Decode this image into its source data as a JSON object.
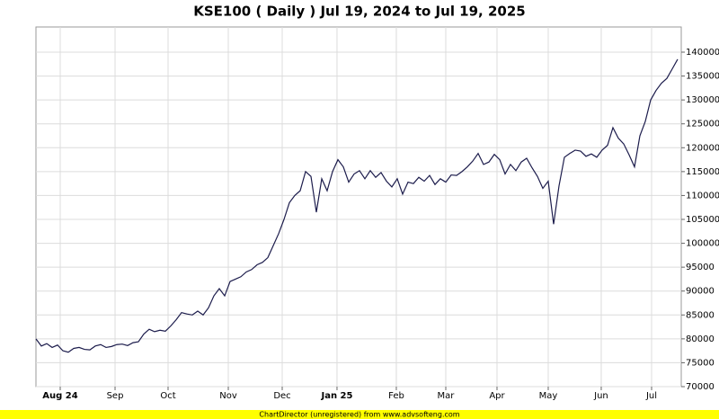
{
  "chart_data": {
    "type": "line",
    "title": "KSE100 ( Daily ) Jul 19, 2024 to Jul 19, 2025",
    "footer": "ChartDirector (unregistered) from www.advsofteng.com",
    "series": [
      {
        "color": "#1c1c4c",
        "values": [
          80000,
          78500,
          79000,
          78200,
          78700,
          77500,
          77200,
          78000,
          78200,
          77800,
          77700,
          78500,
          78800,
          78200,
          78400,
          78800,
          78900,
          78600,
          79200,
          79400,
          81000,
          82000,
          81500,
          81800,
          81600,
          82700,
          84000,
          85500,
          85200,
          85000,
          85800,
          85000,
          86500,
          89000,
          90500,
          89000,
          92000,
          92500,
          93000,
          94000,
          94500,
          95500,
          96000,
          97000,
          99500,
          102000,
          105000,
          108500,
          110000,
          111000,
          115000,
          114000,
          106500,
          113500,
          111000,
          115000,
          117500,
          116000,
          112800,
          114500,
          115200,
          113500,
          115200,
          113800,
          114800,
          113000,
          111800,
          113500,
          110300,
          112800,
          112500,
          113800,
          113000,
          114200,
          112300,
          113500,
          112800,
          114300,
          114200,
          115000,
          116000,
          117200,
          118800,
          116500,
          117000,
          118600,
          117500,
          114500,
          116500,
          115200,
          117000,
          117800,
          115800,
          114000,
          111500,
          113000,
          104000,
          112000,
          118000,
          118800,
          119500,
          119300,
          118200,
          118700,
          118000,
          119500,
          120500,
          124200,
          122000,
          120800,
          118500,
          116000,
          122500,
          125500,
          130000,
          132000,
          133500,
          134500,
          136500,
          138500
        ]
      }
    ],
    "xlim": [
      0,
      119.67
    ],
    "xticks": [
      {
        "value": 4.5,
        "label": "Aug 24",
        "bold": true
      },
      {
        "value": 14.67,
        "label": "Sep"
      },
      {
        "value": 24.5,
        "label": "Oct"
      },
      {
        "value": 35.67,
        "label": "Nov"
      },
      {
        "value": 45.67,
        "label": "Dec"
      },
      {
        "value": 55.83,
        "label": "Jan 25",
        "bold": true
      },
      {
        "value": 66.83,
        "label": "Feb"
      },
      {
        "value": 76,
        "label": "Mar"
      },
      {
        "value": 85.5,
        "label": "Apr"
      },
      {
        "value": 95,
        "label": "May"
      },
      {
        "value": 104.83,
        "label": "Jun"
      },
      {
        "value": 114.17,
        "label": "Jul"
      }
    ],
    "ylim": [
      70000,
      145270
    ],
    "yticks": [
      70000,
      75000,
      80000,
      85000,
      90000,
      95000,
      100000,
      105000,
      110000,
      115000,
      120000,
      125000,
      130000,
      135000,
      140000
    ],
    "grid": true
  }
}
